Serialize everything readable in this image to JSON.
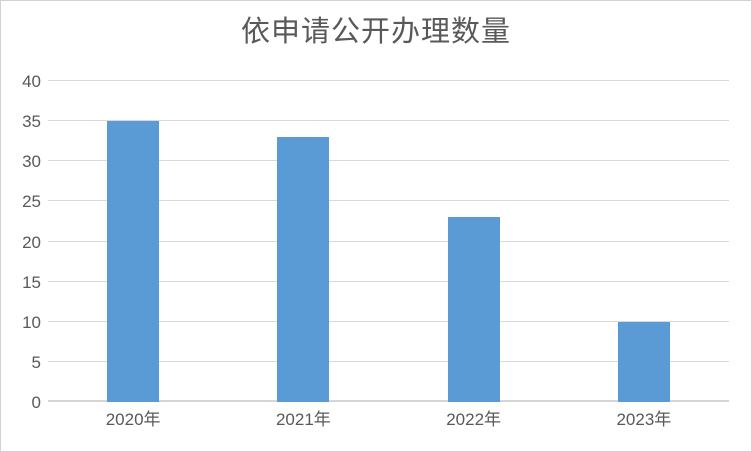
{
  "title": "依申请公开办理数量",
  "colors": {
    "bar": "#5b9bd5",
    "gridline": "#d9d9d9",
    "axis_line": "#d6d6d6",
    "text": "#595959",
    "border": "#d2d2d2",
    "background": "#ffffff"
  },
  "chart_data": {
    "type": "bar",
    "title": "依申请公开办理数量",
    "categories": [
      "2020年",
      "2021年",
      "2022年",
      "2023年"
    ],
    "values": [
      35,
      33,
      23,
      10
    ],
    "xlabel": "",
    "ylabel": "",
    "ylim": [
      0,
      40
    ],
    "yticks": [
      0,
      5,
      10,
      15,
      20,
      25,
      30,
      35,
      40
    ],
    "grid": true,
    "legend": false
  }
}
